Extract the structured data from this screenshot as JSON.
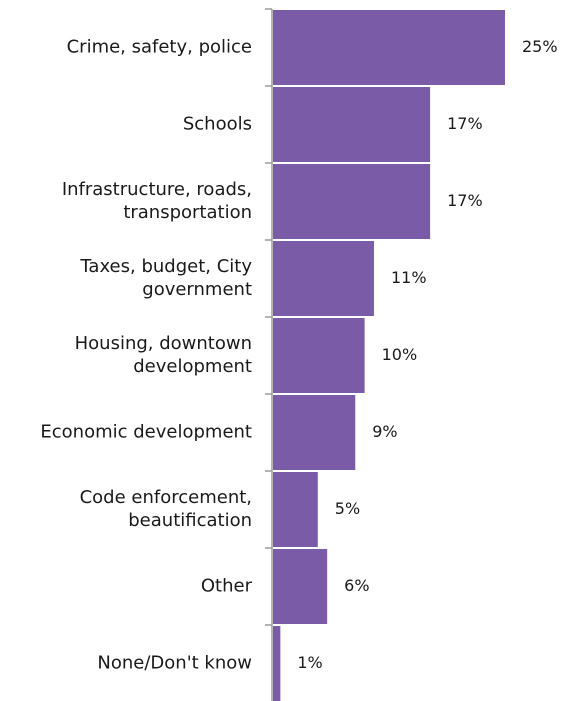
{
  "chart_data": {
    "type": "bar",
    "orientation": "horizontal",
    "categories": [
      [
        "Crime, safety, police"
      ],
      [
        "Schools"
      ],
      [
        "Infrastructure, roads,",
        "transportation"
      ],
      [
        "Taxes, budget, City",
        "government"
      ],
      [
        "Housing, downtown",
        "development"
      ],
      [
        "Economic development"
      ],
      [
        "Code enforcement,",
        "beautification"
      ],
      [
        "Other"
      ],
      [
        "None/Don't know"
      ]
    ],
    "values": [
      25,
      17,
      17,
      11,
      10,
      9,
      5,
      6,
      1
    ],
    "value_labels": [
      "25%",
      "17%",
      "17%",
      "11%",
      "10%",
      "9%",
      "5%",
      "6%",
      "1%"
    ],
    "xlim": [
      0,
      25
    ],
    "grid": false,
    "bar_color": "#7a5ba8",
    "bar_edge_color": "#ffffff"
  }
}
